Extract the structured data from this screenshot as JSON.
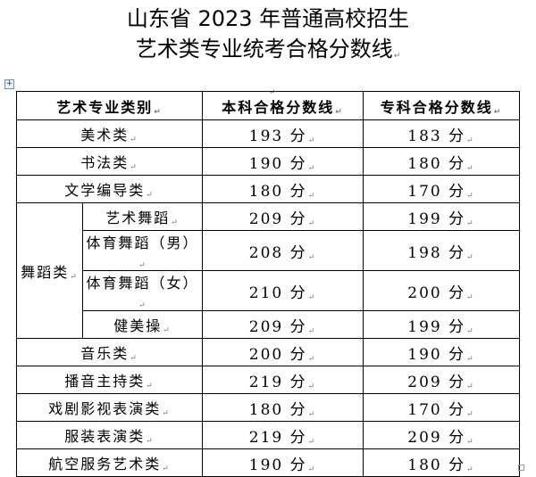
{
  "title": {
    "line1": "山东省 2023 年普通高校招生",
    "line2": "艺术类专业统考合格分数线"
  },
  "table": {
    "headers": [
      "艺术专业类别",
      "本科合格分数线",
      "专科合格分数线"
    ],
    "dance_group": "舞蹈类",
    "rows": [
      {
        "category": "美术类",
        "undergrad": "193 分",
        "college": "183 分"
      },
      {
        "category": "书法类",
        "undergrad": "190 分",
        "college": "180 分"
      },
      {
        "category": "文学编导类",
        "undergrad": "180 分",
        "college": "170 分"
      },
      {
        "category": "艺术舞蹈",
        "undergrad": "209 分",
        "college": "199 分"
      },
      {
        "category": "体育舞蹈（男）",
        "undergrad": "208 分",
        "college": "198 分"
      },
      {
        "category": "体育舞蹈（女）",
        "undergrad": "210 分",
        "college": "200 分"
      },
      {
        "category": "健美操",
        "undergrad": "209 分",
        "college": "199 分"
      },
      {
        "category": "音乐类",
        "undergrad": "200 分",
        "college": "190 分"
      },
      {
        "category": "播音主持类",
        "undergrad": "219 分",
        "college": "209 分"
      },
      {
        "category": "戏剧影视表演类",
        "undergrad": "180 分",
        "college": "170 分"
      },
      {
        "category": "服装表演类",
        "undergrad": "219 分",
        "college": "209 分"
      },
      {
        "category": "航空服务艺术类",
        "undergrad": "190 分",
        "college": "180 分"
      }
    ]
  }
}
